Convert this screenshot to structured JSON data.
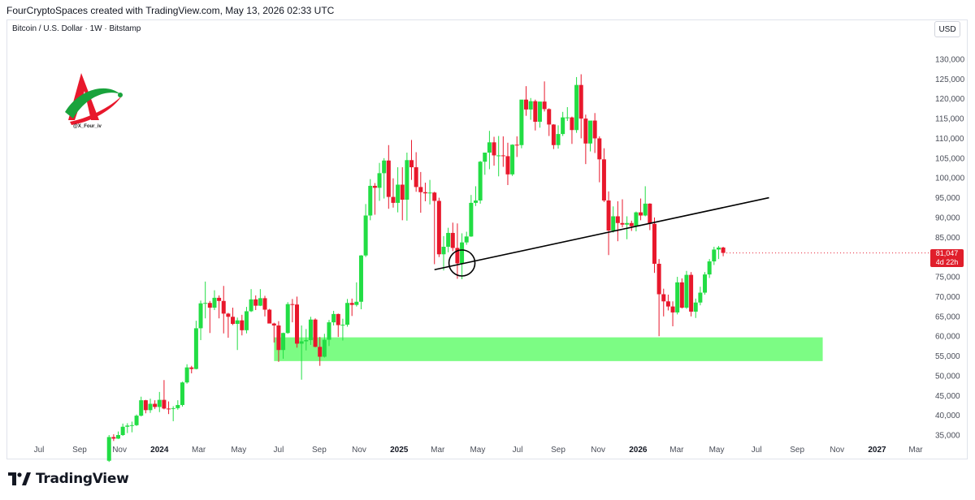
{
  "header": {
    "text": "FourCryptoSpaces created with TradingView.com, May 13, 2026 02:33 UTC"
  },
  "symbol": {
    "text": "Bitcoin / U.S. Dollar · 1W · Bitstamp"
  },
  "currency_label": "USD",
  "watermark": {
    "handle": "@X_Four_iv"
  },
  "price_tag": {
    "price": "81,047",
    "countdown": "4d 22h"
  },
  "brand": {
    "name": "TradingView"
  },
  "colors": {
    "up": "#22dd44",
    "down": "#e8182c",
    "zone": "#7cfc84",
    "trendline": "#000000",
    "grid_text": "#4a4e59"
  },
  "chart_data": {
    "type": "candlestick",
    "title": "Bitcoin / U.S. Dollar · 1W · Bitstamp",
    "ylabel": "USD",
    "ylim": [
      32000,
      135000
    ],
    "y_ticks": [
      35000,
      40000,
      45000,
      50000,
      55000,
      60000,
      65000,
      70000,
      75000,
      80000,
      85000,
      90000,
      95000,
      100000,
      105000,
      110000,
      115000,
      120000,
      125000,
      130000
    ],
    "y_tick_labels": [
      "35,000",
      "40,000",
      "45,000",
      "50,000",
      "55,000",
      "60,000",
      "65,000",
      "70,000",
      "75,000",
      "80,000",
      "85,000",
      "90,000",
      "95,000",
      "100,000",
      "105,000",
      "110,000",
      "115,000",
      "120,000",
      "125,000",
      "130,000"
    ],
    "x_tick_labels": [
      "Jul",
      "Sep",
      "Nov",
      "2024",
      "Mar",
      "May",
      "Jul",
      "Sep",
      "Nov",
      "2025",
      "Mar",
      "May",
      "Jul",
      "Sep",
      "Nov",
      "2026",
      "Mar",
      "May",
      "Jul",
      "Sep",
      "Nov",
      "2027",
      "Mar"
    ],
    "x_tick_dates": [
      "2023-07-01",
      "2023-09-01",
      "2023-11-01",
      "2024-01-01",
      "2024-03-01",
      "2024-05-01",
      "2024-07-01",
      "2024-09-01",
      "2024-11-01",
      "2025-01-01",
      "2025-03-01",
      "2025-05-01",
      "2025-07-01",
      "2025-09-01",
      "2025-11-01",
      "2026-01-01",
      "2026-03-01",
      "2026-05-01",
      "2026-07-01",
      "2026-09-01",
      "2026-11-01",
      "2027-01-01",
      "2027-03-01"
    ],
    "bold_ticks": [
      "2024",
      "2025",
      "2026",
      "2027"
    ],
    "candles": [
      [
        "2023-10-16",
        28500,
        35000,
        28200,
        34500
      ],
      [
        "2023-10-23",
        34500,
        35200,
        33500,
        34100
      ],
      [
        "2023-10-30",
        34100,
        35900,
        34000,
        35000
      ],
      [
        "2023-11-06",
        35000,
        37900,
        34800,
        37100
      ],
      [
        "2023-11-13",
        37100,
        38000,
        35500,
        37400
      ],
      [
        "2023-11-20",
        37400,
        38400,
        35700,
        37500
      ],
      [
        "2023-11-27",
        37500,
        40200,
        37300,
        39900
      ],
      [
        "2023-12-04",
        39900,
        44700,
        39700,
        43800
      ],
      [
        "2023-12-11",
        43800,
        43900,
        40500,
        41300
      ],
      [
        "2023-12-18",
        41300,
        44200,
        40600,
        42900
      ],
      [
        "2023-12-25",
        42900,
        43800,
        41600,
        42100
      ],
      [
        "2024-01-01",
        42100,
        45900,
        40800,
        43900
      ],
      [
        "2024-01-08",
        43900,
        48900,
        41500,
        41700
      ],
      [
        "2024-01-15",
        41700,
        43500,
        40300,
        41600
      ],
      [
        "2024-01-22",
        41600,
        42300,
        38500,
        41800
      ],
      [
        "2024-01-29",
        41800,
        43800,
        41400,
        42600
      ],
      [
        "2024-02-05",
        42600,
        48500,
        42200,
        48300
      ],
      [
        "2024-02-12",
        48300,
        52900,
        48000,
        52100
      ],
      [
        "2024-02-19",
        52100,
        52500,
        50600,
        51700
      ],
      [
        "2024-02-26",
        51700,
        63900,
        51600,
        62000
      ],
      [
        "2024-03-04",
        62000,
        69000,
        59000,
        68300
      ],
      [
        "2024-03-11",
        68300,
        73800,
        64500,
        68400
      ],
      [
        "2024-03-18",
        68400,
        68900,
        60800,
        67200
      ],
      [
        "2024-03-25",
        67200,
        71600,
        66600,
        69700
      ],
      [
        "2024-04-01",
        69700,
        70300,
        64500,
        68900
      ],
      [
        "2024-04-08",
        68900,
        72700,
        60700,
        65700
      ],
      [
        "2024-04-15",
        65700,
        65900,
        59600,
        64900
      ],
      [
        "2024-04-22",
        64900,
        67200,
        62800,
        63100
      ],
      [
        "2024-04-29",
        63100,
        64700,
        56500,
        64000
      ],
      [
        "2024-05-06",
        64000,
        65400,
        60200,
        61500
      ],
      [
        "2024-05-13",
        61500,
        67400,
        60700,
        66300
      ],
      [
        "2024-05-20",
        66300,
        71900,
        66100,
        69300
      ],
      [
        "2024-05-27",
        69300,
        70300,
        66600,
        67700
      ],
      [
        "2024-06-03",
        67700,
        71900,
        67600,
        69600
      ],
      [
        "2024-06-10",
        69600,
        70200,
        65000,
        66700
      ],
      [
        "2024-06-17",
        66700,
        66900,
        63400,
        63200
      ],
      [
        "2024-06-24",
        63200,
        63400,
        58400,
        62700
      ],
      [
        "2024-07-01",
        62700,
        63800,
        53500,
        56500
      ],
      [
        "2024-07-08",
        56500,
        60900,
        54300,
        60800
      ],
      [
        "2024-07-15",
        60800,
        68600,
        60600,
        68100
      ],
      [
        "2024-07-22",
        68100,
        69400,
        63500,
        68000
      ],
      [
        "2024-07-29",
        68000,
        70000,
        57100,
        58100
      ],
      [
        "2024-08-05",
        58100,
        62700,
        49000,
        58700
      ],
      [
        "2024-08-12",
        58700,
        61800,
        56400,
        59000
      ],
      [
        "2024-08-19",
        59000,
        64900,
        57800,
        64200
      ],
      [
        "2024-08-26",
        64200,
        64500,
        57200,
        57300
      ],
      [
        "2024-09-02",
        57300,
        59800,
        52500,
        54800
      ],
      [
        "2024-09-09",
        54800,
        60600,
        54600,
        59100
      ],
      [
        "2024-09-16",
        59100,
        64100,
        57500,
        63500
      ],
      [
        "2024-09-23",
        63500,
        66400,
        62700,
        65600
      ],
      [
        "2024-09-30",
        65600,
        65700,
        59800,
        62800
      ],
      [
        "2024-10-07",
        62800,
        64400,
        58900,
        62900
      ],
      [
        "2024-10-14",
        62900,
        69400,
        62400,
        68400
      ],
      [
        "2024-10-21",
        68400,
        69500,
        65100,
        67900
      ],
      [
        "2024-10-28",
        67900,
        73600,
        67500,
        68700
      ],
      [
        "2024-11-04",
        68700,
        80500,
        66800,
        80400
      ],
      [
        "2024-11-11",
        80400,
        93400,
        80000,
        90500
      ],
      [
        "2024-11-18",
        90500,
        99700,
        89300,
        98000
      ],
      [
        "2024-11-25",
        98000,
        98700,
        90700,
        97500
      ],
      [
        "2024-12-02",
        97500,
        103800,
        94200,
        101200
      ],
      [
        "2024-12-09",
        101200,
        105000,
        94800,
        104400
      ],
      [
        "2024-12-16",
        104400,
        108300,
        92200,
        95200
      ],
      [
        "2024-12-23",
        95200,
        99900,
        92500,
        93700
      ],
      [
        "2024-12-30",
        93700,
        102700,
        91300,
        98300
      ],
      [
        "2025-01-06",
        98300,
        102700,
        89300,
        94500
      ],
      [
        "2025-01-13",
        94500,
        106400,
        89200,
        104500
      ],
      [
        "2025-01-20",
        104500,
        109600,
        99500,
        102700
      ],
      [
        "2025-01-27",
        102700,
        106500,
        96500,
        97700
      ],
      [
        "2025-02-03",
        97700,
        101500,
        91200,
        96400
      ],
      [
        "2025-02-10",
        96400,
        98800,
        94100,
        96100
      ],
      [
        "2025-02-17",
        96100,
        99500,
        93300,
        96300
      ],
      [
        "2025-02-24",
        96300,
        96500,
        78200,
        94200
      ],
      [
        "2025-03-03",
        94200,
        95000,
        80000,
        80700
      ],
      [
        "2025-03-10",
        80700,
        85300,
        76600,
        82600
      ],
      [
        "2025-03-17",
        82600,
        87400,
        81200,
        86100
      ],
      [
        "2025-03-24",
        86100,
        88700,
        81500,
        82300
      ],
      [
        "2025-03-31",
        82300,
        88500,
        74500,
        78400
      ],
      [
        "2025-04-07",
        78400,
        86000,
        74400,
        83700
      ],
      [
        "2025-04-14",
        83700,
        86400,
        83100,
        85200
      ],
      [
        "2025-04-21",
        85200,
        95700,
        85100,
        93700
      ],
      [
        "2025-04-28",
        93700,
        97900,
        92900,
        94300
      ],
      [
        "2025-05-05",
        94300,
        104300,
        93500,
        104100
      ],
      [
        "2025-05-12",
        104100,
        106000,
        100800,
        106400
      ],
      [
        "2025-05-19",
        106400,
        111900,
        102200,
        109000
      ],
      [
        "2025-05-26",
        109000,
        110400,
        103100,
        105700
      ],
      [
        "2025-06-02",
        105700,
        110600,
        100400,
        105700
      ],
      [
        "2025-06-09",
        105700,
        110500,
        102800,
        105500
      ],
      [
        "2025-06-16",
        105500,
        108900,
        98200,
        100900
      ],
      [
        "2025-06-23",
        100900,
        108500,
        100500,
        108400
      ],
      [
        "2025-06-30",
        108400,
        110500,
        105300,
        108300
      ],
      [
        "2025-07-07",
        108300,
        119200,
        107500,
        119800
      ],
      [
        "2025-07-14",
        119800,
        123200,
        115700,
        117300
      ],
      [
        "2025-07-21",
        117300,
        120200,
        114700,
        119400
      ],
      [
        "2025-07-28",
        119400,
        119800,
        112000,
        114200
      ],
      [
        "2025-08-04",
        114200,
        119300,
        112700,
        119300
      ],
      [
        "2025-08-11",
        119300,
        124400,
        116800,
        117400
      ],
      [
        "2025-08-18",
        117400,
        117600,
        110600,
        113500
      ],
      [
        "2025-08-25",
        113500,
        113600,
        107300,
        108300
      ],
      [
        "2025-09-01",
        108300,
        113300,
        107400,
        111100
      ],
      [
        "2025-09-08",
        111100,
        116700,
        110600,
        115300
      ],
      [
        "2025-09-15",
        115300,
        117900,
        114400,
        115300
      ],
      [
        "2025-09-22",
        115300,
        115500,
        108600,
        112100
      ],
      [
        "2025-09-29",
        112100,
        125500,
        111400,
        123500
      ],
      [
        "2025-10-06",
        123500,
        126200,
        110000,
        115000
      ],
      [
        "2025-10-13",
        115000,
        116000,
        103500,
        108700
      ],
      [
        "2025-10-20",
        108700,
        114000,
        106700,
        114500
      ],
      [
        "2025-10-27",
        114500,
        116400,
        106300,
        110000
      ],
      [
        "2025-11-03",
        110000,
        110500,
        98900,
        104700
      ],
      [
        "2025-11-10",
        104700,
        107500,
        93900,
        94300
      ],
      [
        "2025-11-17",
        94300,
        96600,
        80500,
        86700
      ],
      [
        "2025-11-24",
        86700,
        92800,
        86200,
        90300
      ],
      [
        "2025-12-01",
        90300,
        94100,
        84000,
        88600
      ],
      [
        "2025-12-08",
        88600,
        94600,
        87500,
        88200
      ],
      [
        "2025-12-15",
        88200,
        90300,
        84500,
        88600
      ],
      [
        "2025-12-22",
        88600,
        89200,
        86600,
        87800
      ],
      [
        "2025-12-29",
        87800,
        91500,
        86500,
        91300
      ],
      [
        "2026-01-05",
        91300,
        94800,
        89300,
        90500
      ],
      [
        "2026-01-12",
        90500,
        97900,
        90300,
        93500
      ],
      [
        "2026-01-19",
        93500,
        93600,
        86800,
        88400
      ],
      [
        "2026-01-26",
        88400,
        90000,
        76000,
        78300
      ],
      [
        "2026-02-02",
        78300,
        79500,
        60000,
        70600
      ],
      [
        "2026-02-09",
        70600,
        72000,
        65000,
        68800
      ],
      [
        "2026-02-16",
        68800,
        70500,
        66500,
        67500
      ],
      [
        "2026-02-23",
        67500,
        68800,
        62500,
        66000
      ],
      [
        "2026-03-02",
        66000,
        75000,
        65500,
        73600
      ],
      [
        "2026-03-09",
        73600,
        74600,
        67000,
        67200
      ],
      [
        "2026-03-16",
        67200,
        76500,
        66900,
        75500
      ],
      [
        "2026-03-23",
        75500,
        76200,
        65000,
        66200
      ],
      [
        "2026-03-30",
        66200,
        69500,
        64600,
        68500
      ],
      [
        "2026-04-06",
        68500,
        72500,
        67800,
        71000
      ],
      [
        "2026-04-13",
        71000,
        76200,
        70500,
        75600
      ],
      [
        "2026-04-20",
        75600,
        79500,
        74700,
        78900
      ],
      [
        "2026-04-27",
        78900,
        82600,
        78000,
        81900
      ],
      [
        "2026-05-04",
        81900,
        82800,
        79500,
        82400
      ],
      [
        "2026-05-11",
        82400,
        82600,
        80200,
        81047
      ]
    ],
    "support_zone": {
      "from_date": "2024-06-24",
      "to_date": "2026-10-10",
      "low": 53700,
      "high": 59700
    },
    "trendline": {
      "from": [
        "2025-02-24",
        76800
      ],
      "to": [
        "2026-07-20",
        95000
      ]
    },
    "circle_marker": [
      "2025-04-07",
      78500
    ],
    "last_price": 81047
  }
}
